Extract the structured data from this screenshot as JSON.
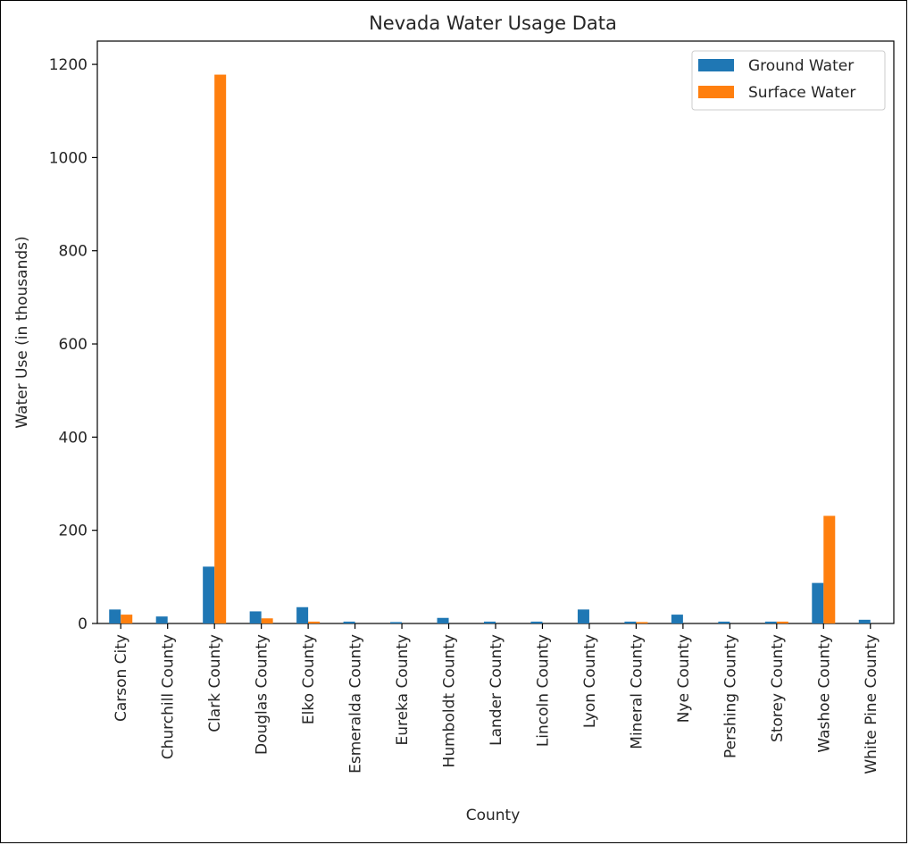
{
  "chart_data": {
    "type": "bar",
    "title": "Nevada Water Usage Data",
    "xlabel": "County",
    "ylabel": "Water Use (in thousands)",
    "ylim": [
      0,
      1250
    ],
    "yticks": [
      0,
      200,
      400,
      600,
      800,
      1000,
      1200
    ],
    "categories": [
      "Carson City",
      "Churchill County",
      "Clark County",
      "Douglas County",
      "Elko County",
      "Esmeralda County",
      "Eureka County",
      "Humboldt County",
      "Lander County",
      "Lincoln County",
      "Lyon County",
      "Mineral County",
      "Nye County",
      "Pershing County",
      "Storey County",
      "Washoe County",
      "White Pine County"
    ],
    "series": [
      {
        "name": "Ground Water",
        "color": "#1f77b4",
        "values": [
          30,
          15,
          122,
          26,
          35,
          4,
          3,
          12,
          4,
          4,
          30,
          4,
          19,
          4,
          4,
          87,
          8
        ]
      },
      {
        "name": "Surface Water",
        "color": "#ff7f0e",
        "values": [
          19,
          0,
          1178,
          11,
          4,
          0,
          0,
          0,
          0,
          0,
          0,
          3,
          0,
          0,
          4,
          231,
          0
        ]
      }
    ],
    "grid": false,
    "legend": "top-right"
  }
}
